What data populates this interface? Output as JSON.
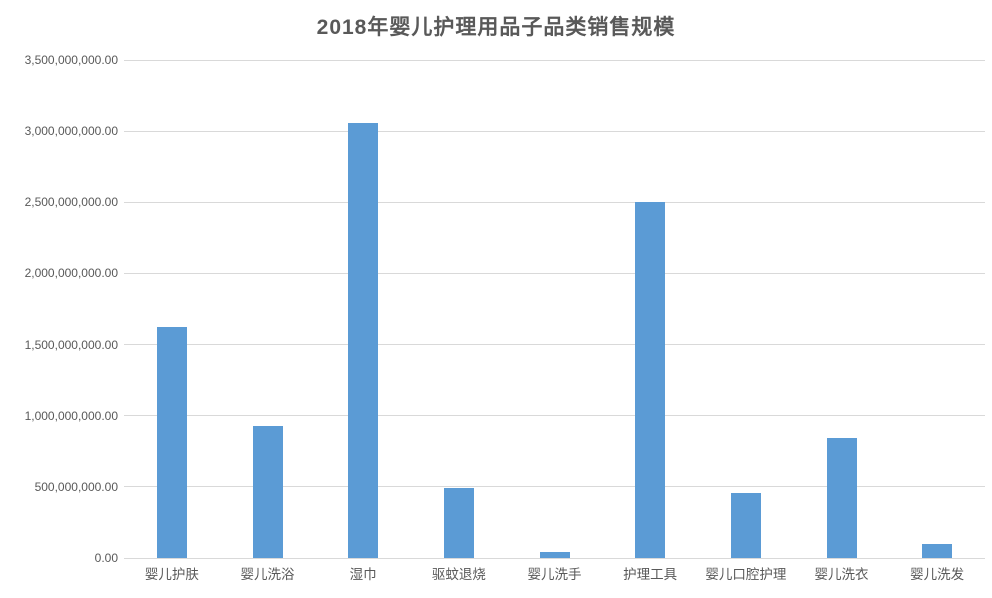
{
  "chart_data": {
    "type": "bar",
    "title": "2018年婴儿护理用品子品类销售规模",
    "categories": [
      "婴儿护肤",
      "婴儿洗浴",
      "湿巾",
      "驱蚊退烧",
      "婴儿洗手",
      "护理工具",
      "婴儿口腔护理",
      "婴儿洗衣",
      "婴儿洗发"
    ],
    "values": [
      1620000000,
      930000000,
      3060000000,
      490000000,
      40000000,
      2500000000,
      460000000,
      840000000,
      100000000
    ],
    "xlabel": "",
    "ylabel": "",
    "ylim": [
      0,
      3500000000
    ],
    "yticks": [
      0,
      500000000,
      1000000000,
      1500000000,
      2000000000,
      2500000000,
      3000000000,
      3500000000
    ],
    "ytick_labels": [
      "0.00",
      "500,000,000.00",
      "1,000,000,000.00",
      "1,500,000,000.00",
      "2,000,000,000.00",
      "2,500,000,000.00",
      "3,000,000,000.00",
      "3,500,000,000.00"
    ],
    "grid": true,
    "legend": "none",
    "colors": {
      "bar": "#5B9BD5",
      "gridline": "#D9D9D9",
      "text": "#595959",
      "background": "#FFFFFF"
    }
  }
}
